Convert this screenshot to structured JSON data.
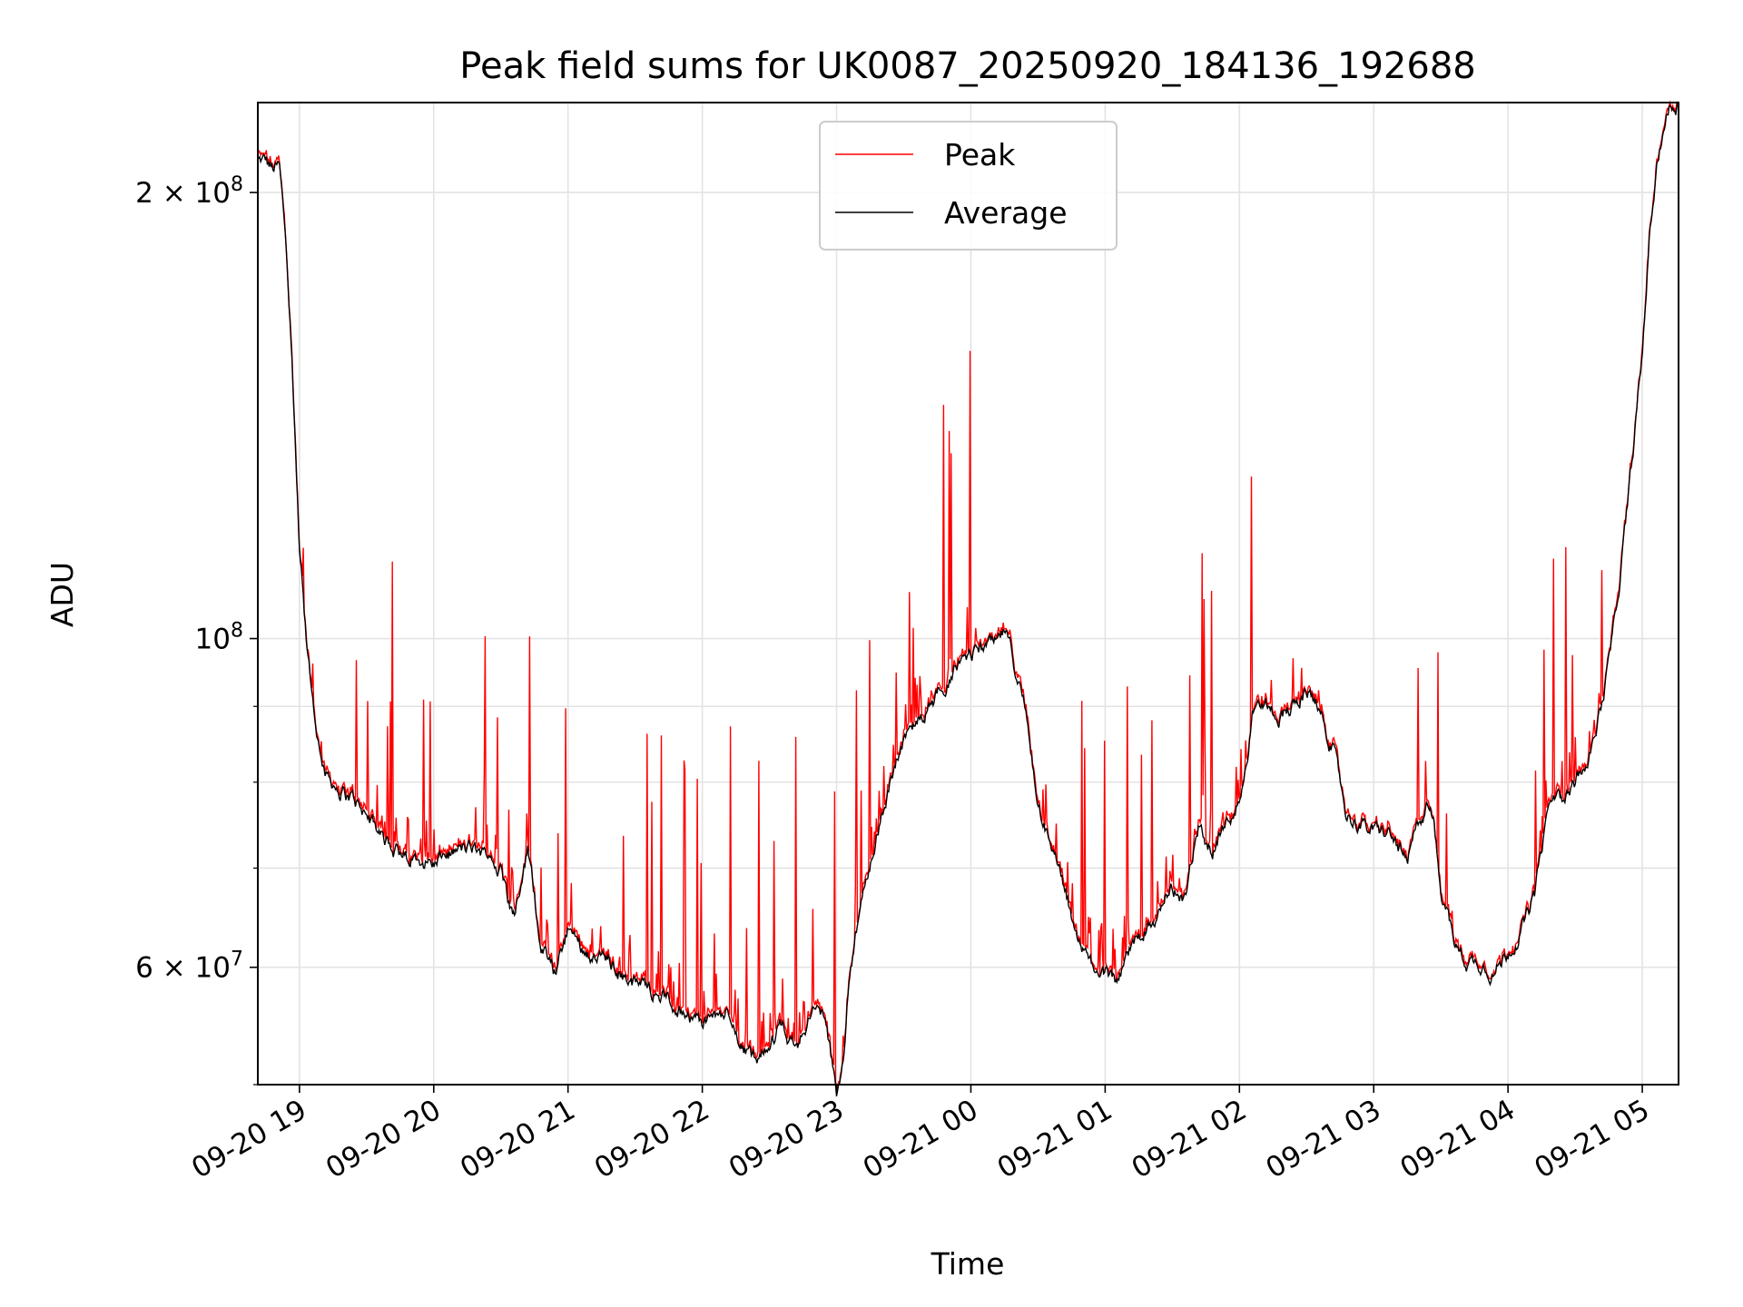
{
  "chart_data": {
    "type": "line",
    "title": "Peak field sums for UK0087_20250920_184136_192688",
    "xlabel": "Time",
    "ylabel": "ADU",
    "yscale": "log",
    "ylim": [
      50000000,
      230000000
    ],
    "xlim_hours": [
      18.69,
      29.27
    ],
    "grid": true,
    "legend_position": "top-center",
    "x_ticks": [
      {
        "label": "09-20 19",
        "hour": 19
      },
      {
        "label": "09-20 20",
        "hour": 20
      },
      {
        "label": "09-20 21",
        "hour": 21
      },
      {
        "label": "09-20 22",
        "hour": 22
      },
      {
        "label": "09-20 23",
        "hour": 23
      },
      {
        "label": "09-21 00",
        "hour": 24
      },
      {
        "label": "09-21 01",
        "hour": 25
      },
      {
        "label": "09-21 02",
        "hour": 26
      },
      {
        "label": "09-21 03",
        "hour": 27
      },
      {
        "label": "09-21 04",
        "hour": 28
      },
      {
        "label": "09-21 05",
        "hour": 29
      }
    ],
    "y_major_ticks": [
      {
        "label_base": "2 × 10",
        "label_exp": "8",
        "value": 200000000
      },
      {
        "label_base": "10",
        "label_exp": "8",
        "value": 100000000
      },
      {
        "label_base": "6 × 10",
        "label_exp": "7",
        "value": 60000000
      }
    ],
    "y_minor_ticks": [
      50000000,
      70000000,
      80000000,
      90000000
    ],
    "series": [
      {
        "name": "Peak",
        "color": "#ff0000",
        "base_hours": [
          18.69,
          18.75,
          18.8,
          18.85,
          18.9,
          18.95,
          19.0,
          19.05,
          19.1,
          19.15,
          19.2,
          19.3,
          19.4,
          19.5,
          19.6,
          19.7,
          19.8,
          19.9,
          20.0,
          20.1,
          20.2,
          20.3,
          20.4,
          20.5,
          20.55,
          20.6,
          20.65,
          20.7,
          20.75,
          20.8,
          20.9,
          21.0,
          21.1,
          21.2,
          21.3,
          21.4,
          21.5,
          21.6,
          21.7,
          21.8,
          21.9,
          22.0,
          22.1,
          22.2,
          22.3,
          22.4,
          22.5,
          22.6,
          22.7,
          22.8,
          22.9,
          23.0,
          23.05,
          23.1,
          23.2,
          23.3,
          23.4,
          23.5,
          23.6,
          23.7,
          23.8,
          23.9,
          24.0,
          24.1,
          24.2,
          24.25,
          24.3,
          24.4,
          24.5,
          24.6,
          24.7,
          24.8,
          24.9,
          25.0,
          25.1,
          25.2,
          25.3,
          25.4,
          25.5,
          25.6,
          25.7,
          25.8,
          25.9,
          26.0,
          26.1,
          26.2,
          26.3,
          26.4,
          26.5,
          26.6,
          26.7,
          26.8,
          26.9,
          27.0,
          27.1,
          27.2,
          27.25,
          27.3,
          27.4,
          27.45,
          27.5,
          27.6,
          27.7,
          27.8,
          27.9,
          28.0,
          28.1,
          28.2,
          28.3,
          28.4,
          28.5,
          28.6,
          28.7,
          28.8,
          28.9,
          29.0,
          29.05,
          29.1,
          29.15,
          29.2,
          29.27
        ],
        "base_values": [
          210000000,
          210000000,
          207000000,
          208000000,
          185000000,
          150000000,
          115000000,
          100000000,
          90000000,
          84000000,
          81000000,
          79000000,
          78000000,
          76000000,
          74000000,
          72000000,
          71000000,
          71000000,
          70500000,
          71500000,
          72000000,
          72000000,
          71500000,
          70000000,
          67000000,
          65000000,
          69000000,
          72000000,
          67000000,
          62000000,
          59500000,
          64000000,
          62000000,
          61000000,
          60500000,
          59500000,
          58500000,
          58000000,
          57500000,
          56500000,
          55500000,
          55000000,
          55500000,
          56000000,
          53000000,
          51500000,
          53500000,
          55000000,
          52500000,
          56000000,
          56000000,
          49500000,
          52000000,
          60000000,
          67000000,
          74000000,
          80000000,
          85000000,
          87500000,
          90000000,
          93000000,
          96000000,
          97500000,
          98500000,
          99000000,
          101000000,
          98000000,
          90000000,
          78000000,
          72000000,
          68000000,
          62000000,
          60000000,
          59500000,
          58000000,
          62000000,
          64000000,
          65500000,
          68000000,
          67000000,
          75000000,
          72000000,
          75000000,
          78000000,
          89000000,
          90500000,
          89000000,
          90000000,
          92000000,
          90000000,
          84000000,
          76000000,
          75000000,
          74000000,
          74000000,
          72000000,
          70000000,
          73500000,
          77000000,
          75000000,
          68000000,
          62000000,
          60500000,
          60500000,
          59500000,
          61500000,
          63500000,
          67000000,
          77000000,
          78000000,
          80000000,
          84000000,
          90000000,
          103000000,
          125000000,
          155000000,
          185000000,
          205000000,
          220000000,
          228000000,
          230000000
        ]
      },
      {
        "name": "Average",
        "color": "#000000"
      }
    ]
  }
}
